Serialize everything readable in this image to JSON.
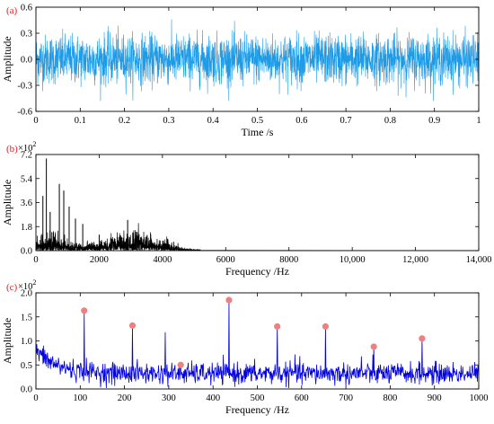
{
  "colors": {
    "signal": "#1E9BE6",
    "spectrum": "#000000",
    "envelope": "#0000E0",
    "peak_marker": "#F08080",
    "panel_label": "#E02020"
  },
  "chart_data": [
    {
      "type": "line",
      "panel_label": "(a)",
      "xlabel": "Time /s",
      "ylabel": "Amplitude",
      "xlim": [
        0,
        1
      ],
      "ylim": [
        -0.6,
        0.6
      ],
      "xticks": [
        0,
        0.1,
        0.2,
        0.3,
        0.4,
        0.5,
        0.6,
        0.7,
        0.8,
        0.9,
        1
      ],
      "xtick_labels": [
        "0",
        "0.1",
        "0.2",
        "0.3",
        "0.4",
        "0.5",
        "0.6",
        "0.7",
        "0.8",
        "0.9",
        "1"
      ],
      "yticks": [
        -0.6,
        -0.3,
        0,
        0.3,
        0.6
      ],
      "ytick_labels": [
        "-0.6",
        "-0.3",
        "0.0",
        "0.3",
        "0.6"
      ],
      "series": [
        {
          "color": "#1E9BE6",
          "description_of_shape": "dense noise-like vibration signal spanning roughly -0.48 to 0.48 over 0-1 s"
        }
      ]
    },
    {
      "type": "line",
      "panel_label": "(b)",
      "xlabel": "Frequency /Hz",
      "ylabel": "Amplitude",
      "multiplier": "×10",
      "multiplier_exp": "2",
      "xlim": [
        0,
        14000
      ],
      "ylim": [
        0,
        7.2
      ],
      "xticks": [
        0,
        2000,
        4000,
        6000,
        8000,
        10000,
        12000,
        14000
      ],
      "xtick_labels": [
        "0",
        "2000",
        "4000",
        "6000",
        "8000",
        "10,000",
        "12,000",
        "14,000"
      ],
      "yticks": [
        0,
        1.8,
        3.6,
        5.4,
        7.2
      ],
      "ytick_labels": [
        "0.0",
        "1.8",
        "3.6",
        "5.4",
        "7.2"
      ],
      "peaks": [
        {
          "x": 330,
          "y": 6.9
        },
        {
          "x": 220,
          "y": 4.1
        },
        {
          "x": 450,
          "y": 2.9
        },
        {
          "x": 740,
          "y": 5.0
        },
        {
          "x": 880,
          "y": 4.5
        },
        {
          "x": 1050,
          "y": 3.3
        },
        {
          "x": 1250,
          "y": 2.4
        },
        {
          "x": 1480,
          "y": 2.0
        },
        {
          "x": 2000,
          "y": 1.2
        },
        {
          "x": 2900,
          "y": 2.3
        },
        {
          "x": 3200,
          "y": 1.4
        }
      ]
    },
    {
      "type": "line",
      "panel_label": "(c)",
      "xlabel": "Frequency /Hz",
      "ylabel": "Amplitude",
      "multiplier": "×10",
      "multiplier_exp": "2",
      "xlim": [
        0,
        1000
      ],
      "ylim": [
        0,
        2.0
      ],
      "xticks": [
        0,
        100,
        200,
        300,
        400,
        500,
        600,
        700,
        800,
        900,
        1000
      ],
      "xtick_labels": [
        "0",
        "100",
        "200",
        "300",
        "400",
        "500",
        "600",
        "700",
        "800",
        "900",
        "1000"
      ],
      "yticks": [
        0,
        0.5,
        1.0,
        1.5,
        2.0
      ],
      "ytick_labels": [
        "0.0",
        "0.5",
        "1.0",
        "1.5",
        "2.0"
      ],
      "marked_peaks": [
        {
          "x": 109,
          "y": 1.63
        },
        {
          "x": 218,
          "y": 1.32
        },
        {
          "x": 327,
          "y": 0.5
        },
        {
          "x": 436,
          "y": 1.85
        },
        {
          "x": 545,
          "y": 1.3
        },
        {
          "x": 654,
          "y": 1.3
        },
        {
          "x": 763,
          "y": 0.88
        },
        {
          "x": 872,
          "y": 1.05
        }
      ],
      "unmarked_peaks": [
        {
          "x": 292,
          "y": 1.18
        },
        {
          "x": 585,
          "y": 0.72
        },
        {
          "x": 735,
          "y": 0.68
        }
      ]
    }
  ]
}
